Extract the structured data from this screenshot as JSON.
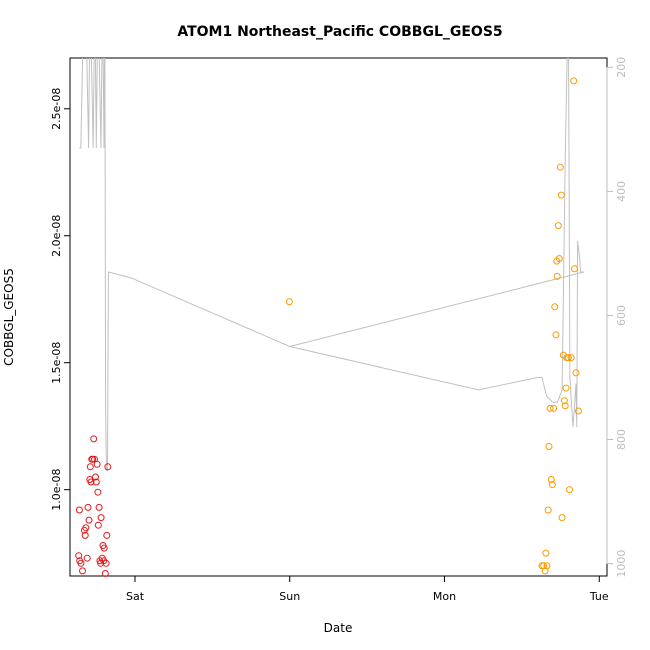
{
  "chart_data": {
    "type": "scatter",
    "title": "ATOM1 Northeast_Pacific COBBGL_GEOS5",
    "xlabel": "Date",
    "ylabel": "COBBGL_GEOS5",
    "x_ticks": [
      "Sat",
      "Sun",
      "Mon",
      "Tue"
    ],
    "xlim": [
      -0.42,
      3.05
    ],
    "ylim": [
      6.6e-09,
      2.7e-08
    ],
    "y_ticks": [
      "1.0e-08",
      "1.5e-08",
      "2.0e-08",
      "2.5e-08"
    ],
    "y_tick_values": [
      1e-08,
      1.5e-08,
      2e-08,
      2.5e-08
    ],
    "y2_ticks": [
      "200",
      "400",
      "600",
      "800",
      "1000"
    ],
    "y2_tick_values": [
      200,
      400,
      600,
      800,
      1000
    ],
    "y2lim": [
      1020,
      185
    ],
    "grid": false,
    "colors": {
      "series1": "#e31a1c",
      "series2": "#ff9900",
      "pressure_line": "#c0c0c0",
      "right_axis": "#bdbdbd"
    },
    "series": [
      {
        "color": "#e31a1c",
        "points": [
          [
            -0.364,
            7.4e-09
          ],
          [
            -0.357,
            7.2e-09
          ],
          [
            -0.349,
            7.1e-09
          ],
          [
            -0.339,
            6.8e-09
          ],
          [
            -0.327,
            8.4e-09
          ],
          [
            -0.322,
            8.2e-09
          ],
          [
            -0.317,
            8.5e-09
          ],
          [
            -0.309,
            7.3e-09
          ],
          [
            -0.304,
            9.3e-09
          ],
          [
            -0.297,
            8.8e-09
          ],
          [
            -0.292,
            1.04e-08
          ],
          [
            -0.289,
            1.09e-08
          ],
          [
            -0.284,
            1.03e-08
          ],
          [
            -0.279,
            1.12e-08
          ],
          [
            -0.273,
            1.12e-08
          ],
          [
            -0.267,
            1.2e-08
          ],
          [
            -0.262,
            1.12e-08
          ],
          [
            -0.255,
            1.05e-08
          ],
          [
            -0.25,
            1.03e-08
          ],
          [
            -0.245,
            1.1e-08
          ],
          [
            -0.24,
            9.9e-09
          ],
          [
            -0.237,
            8.6e-09
          ],
          [
            -0.232,
            9.3e-09
          ],
          [
            -0.227,
            7.2e-09
          ],
          [
            -0.222,
            7.1e-09
          ],
          [
            -0.219,
            8.9e-09
          ],
          [
            -0.212,
            7.3e-09
          ],
          [
            -0.207,
            7.8e-09
          ],
          [
            -0.202,
            7.2e-09
          ],
          [
            -0.199,
            7.7e-09
          ],
          [
            -0.192,
            6.7e-09
          ],
          [
            -0.187,
            7.1e-09
          ],
          [
            -0.182,
            8.2e-09
          ],
          [
            -0.176,
            1.09e-08
          ],
          [
            -0.359,
            9.2e-09
          ]
        ]
      },
      {
        "color": "#ff9900",
        "points": [
          [
            0.998,
            1.74e-08
          ],
          [
            2.63,
            7e-09
          ],
          [
            2.64,
            7e-09
          ],
          [
            2.65,
            6.8e-09
          ],
          [
            2.655,
            7.5e-09
          ],
          [
            2.662,
            7e-09
          ],
          [
            2.67,
            9.2e-09
          ],
          [
            2.675,
            1.17e-08
          ],
          [
            2.682,
            1.32e-08
          ],
          [
            2.69,
            1.04e-08
          ],
          [
            2.697,
            1.02e-08
          ],
          [
            2.705,
            1.32e-08
          ],
          [
            2.712,
            1.72e-08
          ],
          [
            2.72,
            1.61e-08
          ],
          [
            2.728,
            1.84e-08
          ],
          [
            2.725,
            1.9e-08
          ],
          [
            2.735,
            2.04e-08
          ],
          [
            2.742,
            1.91e-08
          ],
          [
            2.748,
            2.27e-08
          ],
          [
            2.755,
            2.16e-08
          ],
          [
            2.76,
            8.9e-09
          ],
          [
            2.768,
            1.53e-08
          ],
          [
            2.775,
            1.35e-08
          ],
          [
            2.78,
            1.33e-08
          ],
          [
            2.785,
            1.4e-08
          ],
          [
            2.79,
            1.52e-08
          ],
          [
            2.8,
            1.52e-08
          ],
          [
            2.808,
            1e-08
          ],
          [
            2.818,
            1.52e-08
          ],
          [
            2.835,
            2.61e-08
          ],
          [
            2.84,
            1.87e-08
          ],
          [
            2.85,
            1.46e-08
          ],
          [
            2.865,
            1.31e-08
          ]
        ]
      }
    ],
    "pressure_line": [
      [
        -0.36,
        330
      ],
      [
        -0.35,
        330
      ],
      [
        -0.33,
        80
      ],
      [
        -0.32,
        80
      ],
      [
        -0.3,
        330
      ],
      [
        -0.29,
        80
      ],
      [
        -0.27,
        330
      ],
      [
        -0.26,
        80
      ],
      [
        -0.25,
        330
      ],
      [
        -0.24,
        80
      ],
      [
        -0.22,
        330
      ],
      [
        -0.21,
        80
      ],
      [
        -0.2,
        330
      ],
      [
        -0.195,
        80
      ],
      [
        -0.19,
        750
      ],
      [
        -0.185,
        850
      ],
      [
        -0.178,
        850
      ],
      [
        -0.172,
        530
      ],
      [
        -0.02,
        540
      ],
      [
        1.0,
        650
      ],
      [
        2.22,
        720
      ],
      [
        2.6,
        700
      ],
      [
        2.63,
        700
      ],
      [
        2.66,
        730
      ],
      [
        2.7,
        740
      ],
      [
        2.73,
        740
      ],
      [
        2.76,
        720
      ],
      [
        2.78,
        350
      ],
      [
        2.8,
        80
      ],
      [
        2.81,
        700
      ],
      [
        2.83,
        780
      ],
      [
        2.85,
        710
      ],
      [
        2.855,
        780
      ],
      [
        2.86,
        480
      ],
      [
        2.87,
        500
      ],
      [
        2.88,
        530
      ],
      [
        2.9,
        530
      ],
      [
        1.0,
        650
      ]
    ]
  }
}
